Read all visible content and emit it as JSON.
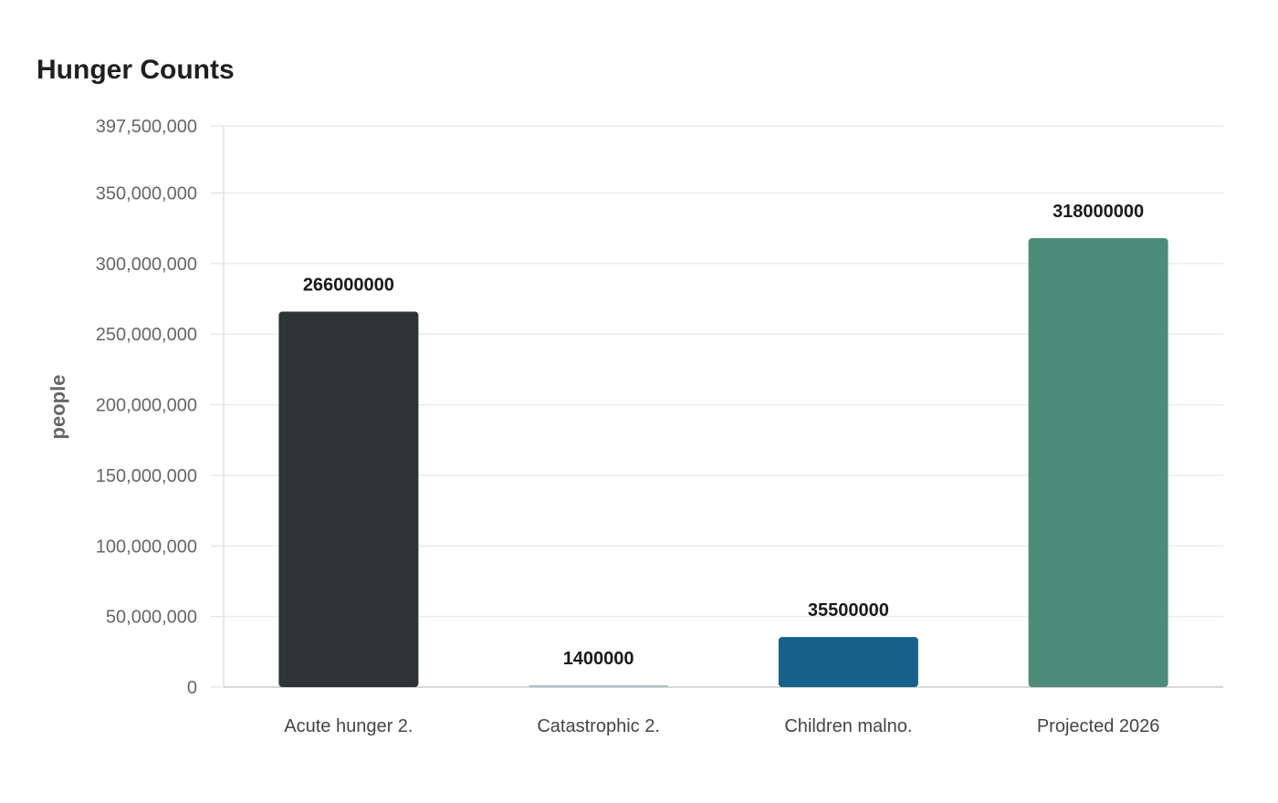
{
  "chart_data": {
    "type": "bar",
    "title": "Hunger Counts",
    "xlabel": "",
    "ylabel": "people",
    "categories": [
      "Acute hunger 2.",
      "Catastrophic 2.",
      "Children malno.",
      "Projected 2026"
    ],
    "values": [
      266000000,
      1400000,
      35500000,
      318000000
    ],
    "data_labels": [
      "266000000",
      "1400000",
      "35500000",
      "318000000"
    ],
    "colors": [
      "#2d3436",
      "#b2bec3",
      "#16628a",
      "#4e8c7a"
    ],
    "ylim": [
      0,
      397500000
    ],
    "yticks": [
      0,
      50000000,
      100000000,
      150000000,
      200000000,
      250000000,
      300000000,
      350000000,
      397500000
    ],
    "ytick_labels": [
      "0",
      "50,000,000",
      "100,000,000",
      "150,000,000",
      "200,000,000",
      "250,000,000",
      "300,000,000",
      "350,000,000",
      "397,500,000"
    ],
    "grid": true,
    "legend": "none"
  }
}
